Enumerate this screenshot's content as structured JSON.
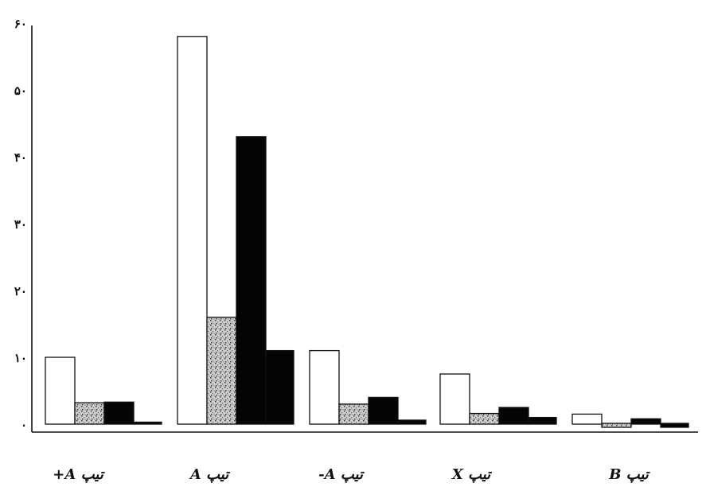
{
  "chart_data": {
    "type": "bar",
    "title": "",
    "xlabel": "",
    "ylabel": "",
    "ylim": [
      0,
      60
    ],
    "yticks": [
      0,
      10,
      20,
      30,
      40,
      50,
      60
    ],
    "ytick_labels": [
      "۰",
      "۱۰",
      "۲۰",
      "۳۰",
      "۴۰",
      "۵۰",
      "۶۰"
    ],
    "grid": false,
    "legend": "none",
    "categories": [
      "تیپ A+",
      "تیپ A",
      "تیپ A-",
      "تیپ X",
      "تیپ B"
    ],
    "series": [
      {
        "fill": "#ffffff",
        "pattern": "none",
        "values": [
          10,
          58,
          11,
          7.5,
          1.5
        ]
      },
      {
        "fill": "#c8c8c8",
        "pattern": "speckle",
        "values": [
          3.2,
          16,
          3,
          1.6,
          -0.5
        ]
      },
      {
        "fill": "#050505",
        "pattern": "none",
        "values": [
          3.3,
          43,
          4,
          2.5,
          0.8
        ]
      },
      {
        "fill": "#050505",
        "pattern": "none",
        "values": [
          0.3,
          11,
          0.6,
          1,
          -0.6
        ]
      }
    ]
  }
}
